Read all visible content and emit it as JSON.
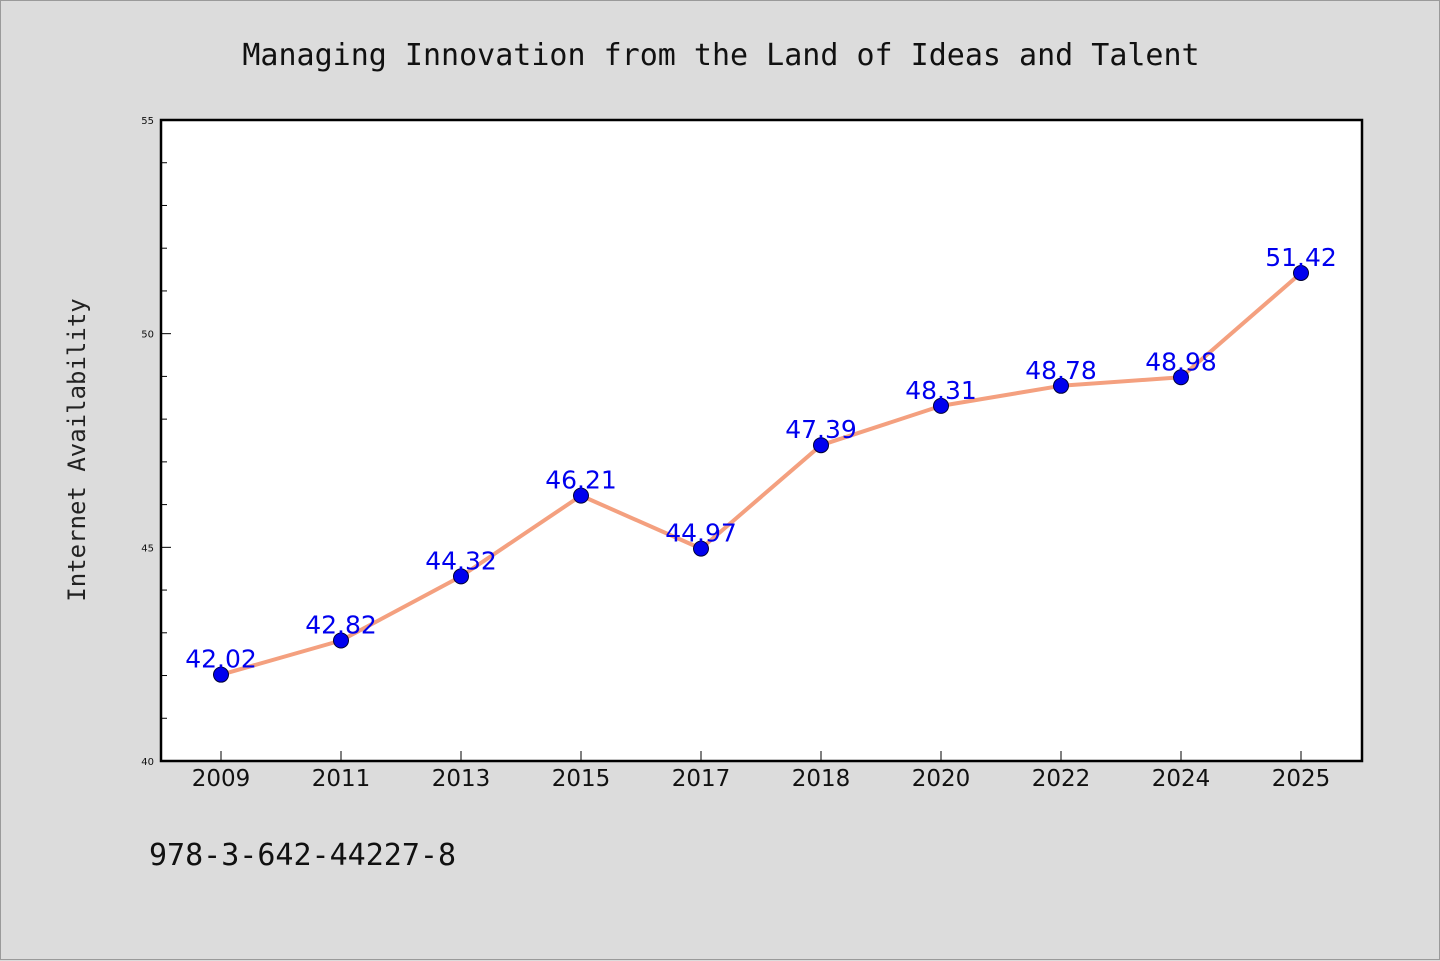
{
  "chart_data": {
    "type": "line",
    "title": "Managing Innovation from the Land of Ideas and Talent",
    "xlabel": "",
    "ylabel": "Internet Availability",
    "categories": [
      "2009",
      "2011",
      "2013",
      "2015",
      "2017",
      "2018",
      "2020",
      "2022",
      "2024",
      "2025"
    ],
    "series": [
      {
        "values": [
          42.02,
          42.82,
          44.32,
          46.21,
          44.97,
          47.39,
          48.31,
          48.78,
          48.98,
          51.42
        ],
        "labels": [
          "42.02",
          "42.82",
          "44.32",
          "46.21",
          "44.97",
          "47.39",
          "48.31",
          "48.78",
          "48.98",
          "51.42"
        ]
      }
    ],
    "ylim": [
      40,
      55
    ],
    "yticks": [
      "40",
      "45",
      "50",
      "55"
    ],
    "y_minor_step": 1,
    "grid": false,
    "legend": "none",
    "colors": {
      "line": "#f4a07f",
      "marker": "#0000ee",
      "data_label": "#0000ee",
      "plot_background": "#ffffff",
      "figure_background": "#dcdcdc"
    }
  },
  "footer": {
    "isbn": "978-3-642-44227-8"
  }
}
